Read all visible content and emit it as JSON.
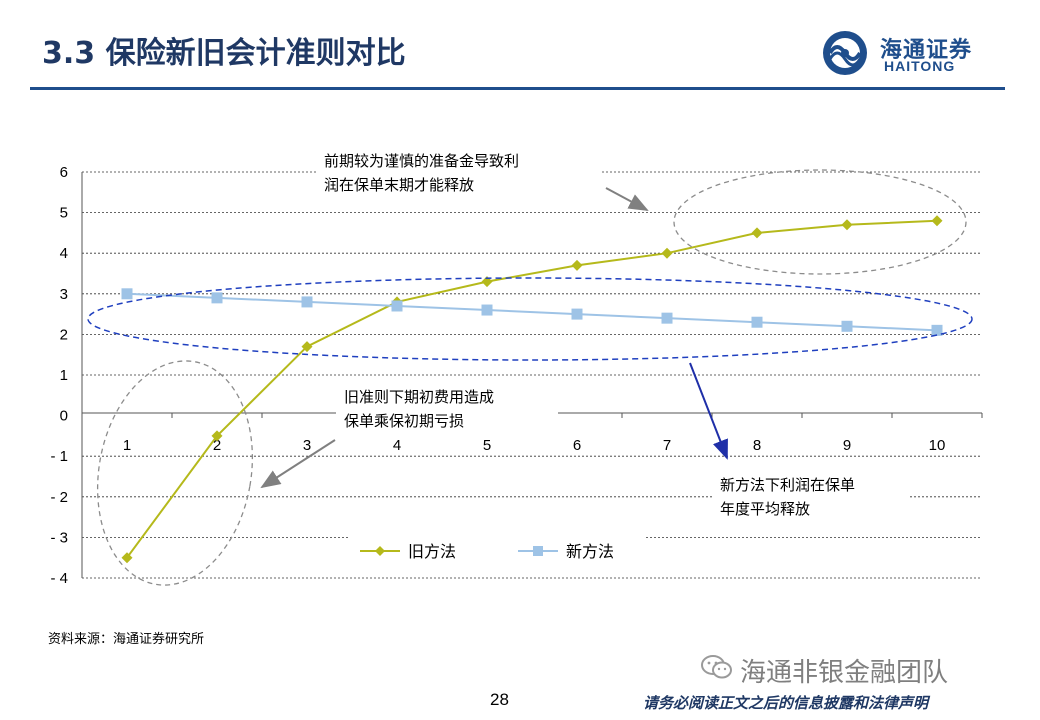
{
  "header": {
    "title": "3.3  保险新旧会计准则对比",
    "logo_cn": "海通证券",
    "logo_en": "HAITONG"
  },
  "chart_data": {
    "type": "line",
    "title": "",
    "xlabel": "",
    "ylabel": "",
    "x": [
      "1",
      "2",
      "3",
      "4",
      "5",
      "6",
      "7",
      "8",
      "9",
      "10"
    ],
    "ylim": [
      -4,
      6
    ],
    "y_ticks": [
      "6",
      "5",
      "4",
      "3",
      "2",
      "1",
      "0",
      "- 1",
      "- 2",
      "- 3",
      "- 4"
    ],
    "y_tick_values": [
      6,
      5,
      4,
      3,
      2,
      1,
      0,
      -1,
      -2,
      -3,
      -4
    ],
    "grid": true,
    "series": [
      {
        "name": "旧方法",
        "color": "#b5b91b",
        "marker": "diamond",
        "values": [
          -3.5,
          -0.5,
          1.7,
          2.8,
          3.3,
          3.7,
          4.0,
          4.5,
          4.7,
          4.8
        ]
      },
      {
        "name": "新方法",
        "color": "#9ec3e6",
        "marker": "square",
        "values": [
          3.0,
          2.9,
          2.8,
          2.7,
          2.6,
          2.5,
          2.4,
          2.3,
          2.2,
          2.1
        ]
      }
    ],
    "annotations": [
      {
        "line1": "前期较为谨慎的准备金导致利",
        "line2": "润在保单末期才能释放"
      },
      {
        "line1": "旧准则下期初费用造成",
        "line2": "保单乘保初期亏损"
      },
      {
        "line1": "新方法下利润在保单",
        "line2": "年度平均释放"
      }
    ],
    "legend_position": "bottom"
  },
  "footer": {
    "source": "资料来源：海通证券研究所",
    "wechat": "海通非银金融团队",
    "page": "28",
    "disclaimer": "请务必阅读正文之后的信息披露和法律声明"
  },
  "colors": {
    "title": "#1f3864",
    "rule": "#1f4e8c",
    "old_series": "#b5b91b",
    "new_series": "#9ec3e6",
    "ellipse_blue": "#1f3fbf",
    "ellipse_gray": "#8c8c8c",
    "arrow_blue": "#1f2fa8",
    "arrow_gray": "#808080"
  }
}
